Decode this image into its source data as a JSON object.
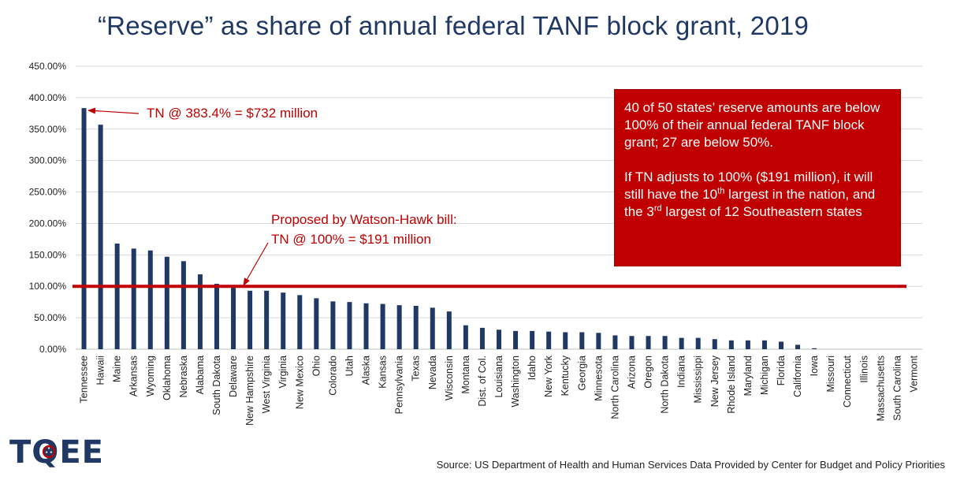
{
  "title": "“Reserve” as share of annual federal TANF block grant, 2019",
  "chart_data": {
    "type": "bar",
    "categories": [
      "Tennessee",
      "Hawaii",
      "Maine",
      "Arkansas",
      "Wyoming",
      "Oklahoma",
      "Nebraska",
      "Alabama",
      "South Dakota",
      "Delaware",
      "New Hampshire",
      "West Virginia",
      "Virginia",
      "New Mexico",
      "Ohio",
      "Colorado",
      "Utah",
      "Alaska",
      "Kansas",
      "Pennsylvania",
      "Texas",
      "Nevada",
      "Wisconsin",
      "Montana",
      "Dist. of Col.",
      "Louisiana",
      "Washington",
      "Idaho",
      "New York",
      "Kentucky",
      "Georgia",
      "Minnesota",
      "North Carolina",
      "Arizona",
      "Oregon",
      "North Dakota",
      "Indiana",
      "Mississippi",
      "New Jersey",
      "Rhode Island",
      "Maryland",
      "Michigan",
      "Florida",
      "California",
      "Iowa",
      "Missouri",
      "Connecticut",
      "Illinois",
      "Massachusetts",
      "South Carolina",
      "Vermont"
    ],
    "values": [
      383.4,
      357,
      168,
      160,
      157,
      147,
      140,
      119,
      104,
      100,
      93,
      93,
      90,
      86,
      81,
      76,
      75,
      73,
      72,
      70,
      69,
      66,
      60,
      38,
      34,
      31,
      29,
      29,
      28,
      27,
      27,
      26,
      22,
      21,
      21,
      21,
      18,
      18,
      16,
      14,
      14,
      14,
      12,
      7,
      1.5,
      0,
      0,
      0,
      0,
      0,
      0
    ],
    "ylim": [
      0,
      450
    ],
    "yticks": [
      "0.00%",
      "50.00%",
      "100.00%",
      "150.00%",
      "200.00%",
      "250.00%",
      "300.00%",
      "350.00%",
      "400.00%",
      "450.00%"
    ],
    "reference_line": 100,
    "bar_color": "#1f3864",
    "reference_color": "#c00000",
    "grid": true
  },
  "annotations": {
    "tn": "TN @ 383.4% = $732 million",
    "watson_line1": "Proposed by Watson-Hawk bill:",
    "watson_line2": "TN @ 100% = $191 million"
  },
  "callout": {
    "p1": "40 of 50 states’ reserve amounts are below 100% of their annual federal TANF block grant; 27 are below 50%.",
    "p2_a": "If TN adjusts to 100% ($191 million), it will still have the  10",
    "p2_sup1": "th",
    "p2_b": " largest in the nation, and the 3",
    "p2_sup2": "rd",
    "p2_c": " largest  of 12 Southeastern states",
    "background": "#c00000"
  },
  "logo": {
    "t": "T",
    "q": "Q",
    "ee": "EE",
    "color": "#1f3864"
  },
  "source": "Source: US Department of Health and Human Services Data Provided by Center for Budget and Policy Priorities"
}
